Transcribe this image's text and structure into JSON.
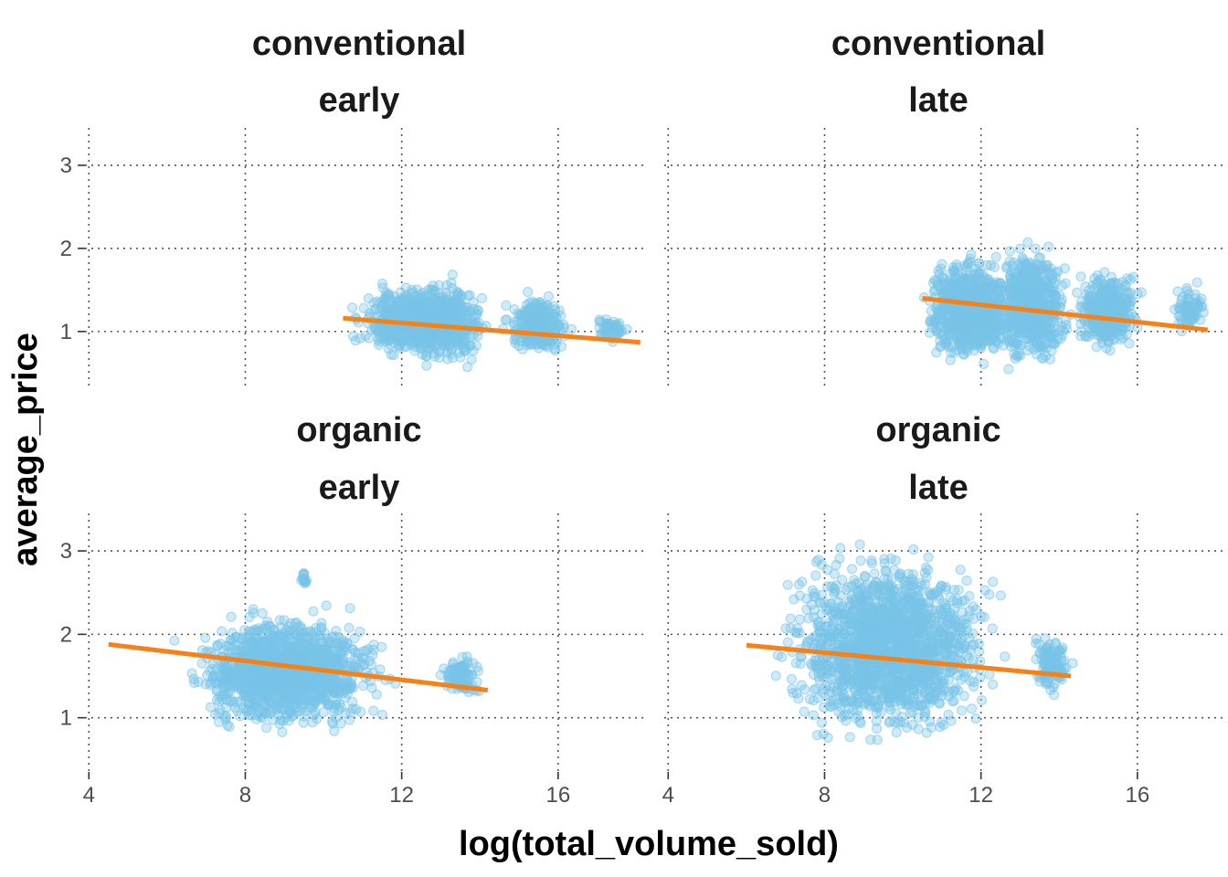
{
  "chart_data": {
    "type": "scatter",
    "xlabel": "log(total_volume_sold)",
    "ylabel": "average_price",
    "xlim": [
      3.9,
      18.2
    ],
    "ylim": [
      0.35,
      3.45
    ],
    "x_ticks": [
      4,
      8,
      12,
      16
    ],
    "y_ticks": [
      1,
      2,
      3
    ],
    "point_color": "#78C4E8",
    "line_color": "#F58219",
    "grid_color": "#555555",
    "panels": [
      {
        "id": "conventional-early",
        "strip": [
          "conventional",
          "early"
        ],
        "fit_line": {
          "x": [
            10.5,
            18.1
          ],
          "y": [
            1.16,
            0.87
          ]
        },
        "clusters": [
          {
            "x": [
              10.5,
              14.4
            ],
            "ymin": 0.6,
            "ymax": 1.65,
            "n": 650
          },
          {
            "x": [
              12.2,
              14.3
            ],
            "ymin": 0.5,
            "ymax": 1.7,
            "n": 200
          },
          {
            "x": [
              14.5,
              16.4
            ],
            "ymin": 0.65,
            "ymax": 1.5,
            "n": 280
          },
          {
            "x": [
              16.9,
              17.8
            ],
            "ymin": 0.85,
            "ymax": 1.2,
            "n": 60
          }
        ]
      },
      {
        "id": "conventional-late",
        "strip": [
          "conventional",
          "late"
        ],
        "fit_line": {
          "x": [
            10.5,
            17.8
          ],
          "y": [
            1.4,
            1.02
          ]
        },
        "clusters": [
          {
            "x": [
              10.4,
              13.0
            ],
            "ymin": 0.55,
            "ymax": 2.0,
            "n": 900
          },
          {
            "x": [
              12.2,
              14.4
            ],
            "ymin": 0.5,
            "ymax": 2.15,
            "n": 600
          },
          {
            "x": [
              14.3,
              16.2
            ],
            "ymin": 0.7,
            "ymax": 1.8,
            "n": 400
          },
          {
            "x": [
              16.8,
              17.9
            ],
            "ymin": 0.9,
            "ymax": 1.65,
            "n": 70
          }
        ]
      },
      {
        "id": "organic-early",
        "strip": [
          "organic",
          "early"
        ],
        "fit_line": {
          "x": [
            4.5,
            14.2
          ],
          "y": [
            1.88,
            1.33
          ]
        },
        "clusters": [
          {
            "x": [
              6.2,
              12.0
            ],
            "ymin": 0.75,
            "ymax": 2.35,
            "n": 1400
          },
          {
            "x": [
              12.9,
              14.2
            ],
            "ymin": 1.2,
            "ymax": 1.8,
            "n": 90
          },
          {
            "x": [
              9.4,
              9.6
            ],
            "ymin": 2.55,
            "ymax": 2.8,
            "n": 15
          }
        ]
      },
      {
        "id": "organic-late",
        "strip": [
          "organic",
          "late"
        ],
        "fit_line": {
          "x": [
            6.0,
            14.3
          ],
          "y": [
            1.87,
            1.5
          ]
        },
        "clusters": [
          {
            "x": [
              6.5,
              12.8
            ],
            "ymin": 0.6,
            "ymax": 3.15,
            "n": 1700
          },
          {
            "x": [
              13.2,
              14.4
            ],
            "ymin": 1.2,
            "ymax": 2.1,
            "n": 110
          }
        ]
      }
    ]
  }
}
